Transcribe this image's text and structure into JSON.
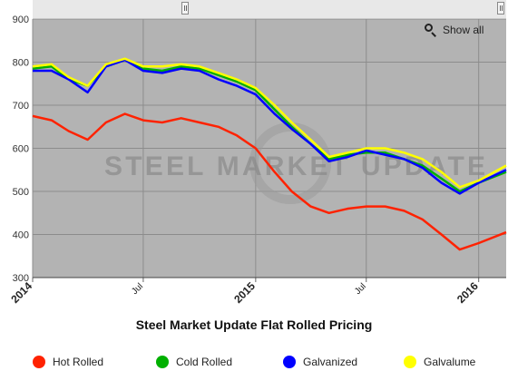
{
  "navigator": {
    "handle_left": "navigator-handle",
    "handle_right": "navigator-handle"
  },
  "toolbar": {
    "show_all_label": "Show all",
    "zoom_icon": "zoom-out-icon"
  },
  "watermark": "STEEL MARKET UPDATE",
  "chart_data": {
    "type": "line",
    "title": "Steel Market Update Flat Rolled Pricing",
    "xlabel": "",
    "ylabel": "",
    "ylim": [
      300,
      900
    ],
    "yticks": [
      300,
      400,
      500,
      600,
      700,
      800,
      900
    ],
    "xlim": [
      "2014-01-01",
      "2016-02-15"
    ],
    "xticks": [
      {
        "date": "2014-01-01",
        "label": "2014",
        "bold": true
      },
      {
        "date": "2014-07-01",
        "label": "Jul",
        "bold": false
      },
      {
        "date": "2015-01-01",
        "label": "2015",
        "bold": true
      },
      {
        "date": "2015-07-01",
        "label": "Jul",
        "bold": false
      },
      {
        "date": "2016-01-01",
        "label": "2016",
        "bold": true
      }
    ],
    "grid": true,
    "legend": "bottom",
    "x": [
      "2014-01-01",
      "2014-02-01",
      "2014-03-01",
      "2014-04-01",
      "2014-05-01",
      "2014-06-01",
      "2014-07-01",
      "2014-08-01",
      "2014-09-01",
      "2014-10-01",
      "2014-11-01",
      "2014-12-01",
      "2015-01-01",
      "2015-02-01",
      "2015-03-01",
      "2015-04-01",
      "2015-05-01",
      "2015-06-01",
      "2015-07-01",
      "2015-08-01",
      "2015-09-01",
      "2015-10-01",
      "2015-11-01",
      "2015-12-01",
      "2016-01-01",
      "2016-02-15"
    ],
    "series": [
      {
        "name": "Hot Rolled",
        "color": "#ff2200",
        "values": [
          675,
          665,
          640,
          620,
          660,
          680,
          665,
          660,
          670,
          660,
          650,
          630,
          600,
          545,
          500,
          465,
          450,
          460,
          465,
          465,
          455,
          435,
          400,
          365,
          380,
          405
        ]
      },
      {
        "name": "Cold Rolled",
        "color": "#00b000",
        "values": [
          785,
          790,
          760,
          745,
          790,
          805,
          785,
          780,
          790,
          785,
          770,
          755,
          735,
          690,
          650,
          610,
          575,
          585,
          590,
          590,
          575,
          560,
          530,
          500,
          520,
          545
        ]
      },
      {
        "name": "Galvanized",
        "color": "#0000ff",
        "values": [
          780,
          780,
          760,
          730,
          790,
          805,
          780,
          775,
          785,
          780,
          760,
          745,
          725,
          680,
          645,
          610,
          570,
          580,
          595,
          585,
          575,
          555,
          520,
          495,
          520,
          550
        ]
      },
      {
        "name": "Galvalume",
        "color": "#ffff00",
        "values": [
          790,
          795,
          765,
          745,
          795,
          808,
          790,
          790,
          795,
          790,
          775,
          760,
          740,
          700,
          660,
          620,
          580,
          590,
          600,
          600,
          590,
          575,
          545,
          510,
          525,
          560
        ]
      }
    ]
  }
}
